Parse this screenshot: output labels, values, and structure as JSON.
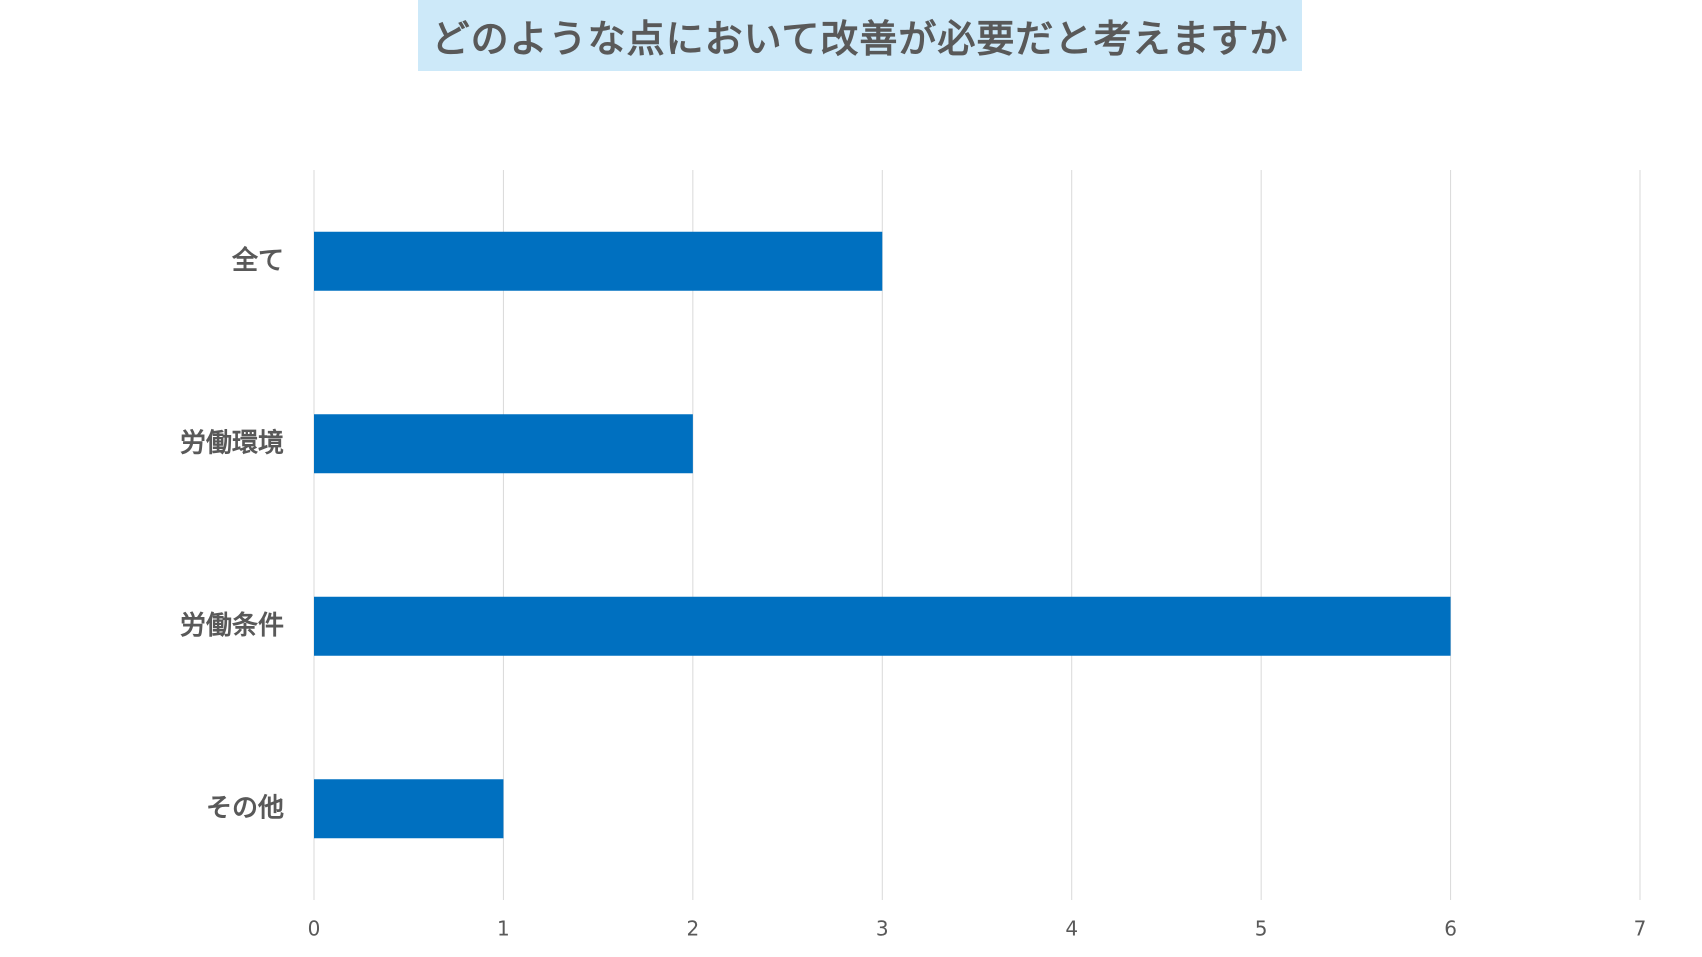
{
  "chart_data": {
    "type": "bar",
    "orientation": "horizontal",
    "title": "どのような点において改善が必要だと考えますか",
    "categories": [
      "全て",
      "労働環境",
      "労働条件",
      "その他"
    ],
    "values": [
      3,
      2,
      6,
      1
    ],
    "xlim": [
      0,
      7
    ],
    "x_ticks": [
      "0",
      "1",
      "2",
      "3",
      "4",
      "5",
      "6",
      "7"
    ],
    "xlabel": "",
    "ylabel": "",
    "grid": "vertical",
    "legend": "none",
    "colors": {
      "bar": "#0070c0",
      "grid": "#d9d9d9",
      "title_bg": "#cde9f9",
      "title_text": "#595959",
      "category_text": "#595959",
      "tick_text": "#595959"
    }
  }
}
